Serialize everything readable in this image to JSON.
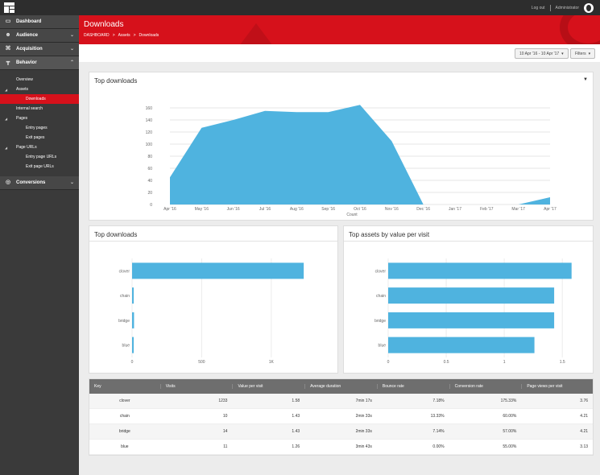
{
  "topbar": {
    "logout": "Log out",
    "user": "Administrator"
  },
  "sidebar": {
    "sections": [
      {
        "label": "Dashboard",
        "icon": "dashboard-icon"
      },
      {
        "label": "Audience",
        "icon": "audience-icon"
      },
      {
        "label": "Acquisition",
        "icon": "acquisition-icon"
      },
      {
        "label": "Behavior",
        "icon": "behavior-icon"
      }
    ],
    "behavior_items": [
      {
        "label": "Overview"
      },
      {
        "label": "Assets"
      },
      {
        "label": "Downloads"
      },
      {
        "label": "Internal search"
      },
      {
        "label": "Pages"
      },
      {
        "label": "Entry pages"
      },
      {
        "label": "Exit pages"
      },
      {
        "label": "Page URLs"
      },
      {
        "label": "Entry page URLs"
      },
      {
        "label": "Exit page URLs"
      }
    ],
    "conversions": {
      "label": "Conversions",
      "icon": "conversions-icon"
    }
  },
  "header": {
    "title": "Downloads",
    "crumbs": [
      "DASHBOARD",
      ">",
      "Assets",
      ">",
      "Downloads"
    ]
  },
  "toolbar": {
    "date_range": "10 Apr '16 - 10 Apr '17",
    "filters": "Filters"
  },
  "top_chart": {
    "title": "Top downloads"
  },
  "chart_data": [
    {
      "type": "area",
      "title": "Top downloads",
      "xlabel": "Count",
      "x": [
        "Apr '16",
        "May '16",
        "Jun '16",
        "Jul '16",
        "Aug '16",
        "Sep '16",
        "Oct '16",
        "Nov '16",
        "Dec '16",
        "Jan '17",
        "Feb '17",
        "Mar '17",
        "Apr '17"
      ],
      "values": [
        45,
        127,
        140,
        155,
        153,
        153,
        165,
        105,
        0,
        0,
        0,
        0,
        12
      ],
      "y_ticks": [
        0,
        20,
        40,
        60,
        80,
        100,
        120,
        140,
        160
      ],
      "ylim": [
        0,
        160
      ],
      "color": "#4fb3df"
    },
    {
      "type": "bar",
      "title": "Top downloads",
      "categories": [
        "clover",
        "chain",
        "bridge",
        "blue"
      ],
      "values": [
        1233,
        10,
        14,
        11
      ],
      "x_ticks": [
        "0",
        "500",
        "1K"
      ],
      "xlim": [
        0,
        1400
      ],
      "color": "#4fb3df"
    },
    {
      "type": "bar",
      "title": "Top assets by value per visit",
      "categories": [
        "clover",
        "chain",
        "bridge",
        "blue"
      ],
      "values": [
        1.58,
        1.43,
        1.43,
        1.26
      ],
      "x_ticks": [
        "0",
        "0.5",
        "1",
        "1.5"
      ],
      "xlim": [
        0,
        1.7
      ],
      "color": "#4fb3df"
    }
  ],
  "table": {
    "headers": [
      "Key",
      "Visits",
      "Value per visit",
      "Average duration",
      "Bounce rate",
      "Conversion rate",
      "Page views per visit"
    ],
    "rows": [
      [
        "clover",
        "1233",
        "1.58",
        "7min 17s",
        "7.18%",
        "175.33%",
        "3.76"
      ],
      [
        "chain",
        "10",
        "1.43",
        "2min 33s",
        "13.33%",
        "60.00%",
        "4.21"
      ],
      [
        "bridge",
        "14",
        "1.43",
        "2min 33s",
        "7.14%",
        "57.00%",
        "4.21"
      ],
      [
        "blue",
        "11",
        "1.26",
        "3min 43s",
        "0.00%",
        "55.00%",
        "3.13"
      ]
    ]
  }
}
